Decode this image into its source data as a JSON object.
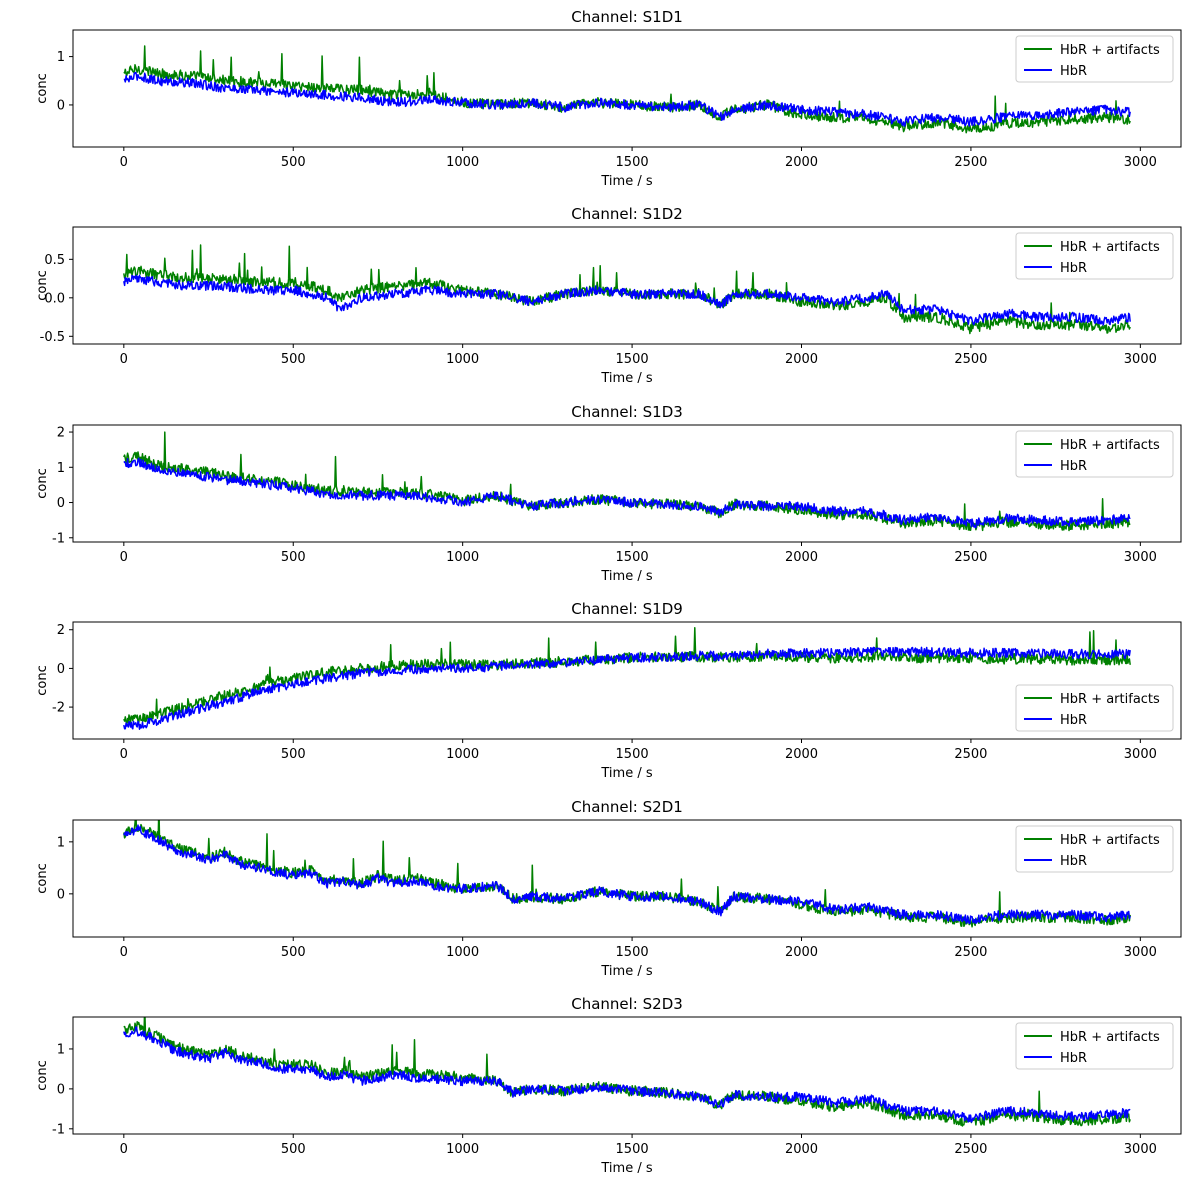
{
  "chart_data": [
    {
      "type": "line",
      "title": "Channel: S1D1",
      "xlabel": "Time / s",
      "ylabel": "conc",
      "xlim": [
        -150,
        3120
      ],
      "ylim": [
        -0.87,
        1.55
      ],
      "xticks": [
        0,
        500,
        1000,
        1500,
        2000,
        2500,
        3000
      ],
      "yticks": [
        0,
        1
      ],
      "legend_loc": "upper right",
      "series": [
        {
          "name": "HbR + artifacts",
          "color": "#008000",
          "x": [
            0,
            40,
            100,
            200,
            300,
            400,
            500,
            600,
            700,
            800,
            900,
            1000,
            1100,
            1200,
            1300,
            1400,
            1500,
            1600,
            1700,
            1760,
            1800,
            1900,
            2000,
            2100,
            2200,
            2300,
            2400,
            2500,
            2600,
            2700,
            2800,
            2900,
            2970
          ],
          "y": [
            0.65,
            0.75,
            0.65,
            0.6,
            0.5,
            0.45,
            0.4,
            0.35,
            0.3,
            0.2,
            0.25,
            0.05,
            0,
            0.05,
            -0.05,
            0.05,
            0,
            -0.05,
            0,
            -0.25,
            -0.1,
            0,
            -0.2,
            -0.25,
            -0.3,
            -0.45,
            -0.35,
            -0.5,
            -0.4,
            -0.35,
            -0.3,
            -0.25,
            -0.3
          ]
        },
        {
          "name": "HbR",
          "color": "#0000ff",
          "x": [
            0,
            40,
            100,
            200,
            300,
            400,
            500,
            600,
            700,
            800,
            900,
            1000,
            1100,
            1200,
            1300,
            1400,
            1500,
            1600,
            1700,
            1760,
            1800,
            1900,
            2000,
            2100,
            2200,
            2300,
            2400,
            2500,
            2600,
            2700,
            2800,
            2900,
            2970
          ],
          "y": [
            0.5,
            0.6,
            0.5,
            0.45,
            0.35,
            0.3,
            0.25,
            0.2,
            0.15,
            0.05,
            0.1,
            0.05,
            0,
            0.05,
            -0.05,
            0.05,
            0,
            -0.05,
            0,
            -0.25,
            -0.1,
            0,
            -0.1,
            -0.15,
            -0.2,
            -0.35,
            -0.25,
            -0.35,
            -0.25,
            -0.2,
            -0.15,
            -0.1,
            -0.15
          ]
        }
      ]
    },
    {
      "type": "line",
      "title": "Channel: S1D2",
      "xlabel": "Time / s",
      "ylabel": "conc",
      "xlim": [
        -150,
        3120
      ],
      "ylim": [
        -0.6,
        0.92
      ],
      "xticks": [
        0,
        500,
        1000,
        1500,
        2000,
        2500,
        3000
      ],
      "yticks": [
        -0.5,
        0.0,
        0.5
      ],
      "legend_loc": "upper right",
      "series": [
        {
          "name": "HbR + artifacts",
          "color": "#008000",
          "x": [
            0,
            40,
            100,
            200,
            300,
            400,
            500,
            600,
            640,
            700,
            800,
            900,
            1000,
            1100,
            1200,
            1300,
            1400,
            1500,
            1600,
            1700,
            1760,
            1800,
            1900,
            2000,
            2100,
            2200,
            2250,
            2300,
            2400,
            2500,
            2600,
            2700,
            2800,
            2900,
            2970
          ],
          "y": [
            0.3,
            0.35,
            0.3,
            0.25,
            0.25,
            0.2,
            0.2,
            0.1,
            0.0,
            0.1,
            0.15,
            0.2,
            0.1,
            0.05,
            -0.05,
            0.05,
            0.1,
            0.05,
            0.05,
            0.05,
            -0.1,
            0.05,
            0.05,
            -0.05,
            -0.1,
            -0.05,
            0.0,
            -0.25,
            -0.25,
            -0.4,
            -0.3,
            -0.35,
            -0.35,
            -0.4,
            -0.35
          ]
        },
        {
          "name": "HbR",
          "color": "#0000ff",
          "x": [
            0,
            40,
            100,
            200,
            300,
            400,
            500,
            600,
            640,
            700,
            800,
            900,
            1000,
            1100,
            1200,
            1300,
            1400,
            1500,
            1600,
            1700,
            1760,
            1800,
            1900,
            2000,
            2100,
            2200,
            2250,
            2300,
            2400,
            2500,
            2600,
            2700,
            2800,
            2900,
            2970
          ],
          "y": [
            0.2,
            0.25,
            0.2,
            0.15,
            0.15,
            0.1,
            0.1,
            0.0,
            -0.15,
            0.0,
            0.05,
            0.1,
            0.05,
            0.05,
            -0.05,
            0.05,
            0.1,
            0.05,
            0.05,
            0.05,
            -0.1,
            0.05,
            0.05,
            0.0,
            -0.05,
            0.0,
            0.05,
            -0.15,
            -0.15,
            -0.3,
            -0.2,
            -0.25,
            -0.25,
            -0.3,
            -0.25
          ]
        }
      ]
    },
    {
      "type": "line",
      "title": "Channel: S1D3",
      "xlabel": "Time / s",
      "ylabel": "conc",
      "xlim": [
        -150,
        3120
      ],
      "ylim": [
        -1.12,
        2.2
      ],
      "xticks": [
        0,
        500,
        1000,
        1500,
        2000,
        2500,
        3000
      ],
      "yticks": [
        -1,
        0,
        1,
        2
      ],
      "legend_loc": "upper right",
      "series": [
        {
          "name": "HbR + artifacts",
          "color": "#008000",
          "x": [
            0,
            40,
            100,
            200,
            300,
            400,
            500,
            600,
            700,
            800,
            900,
            1000,
            1100,
            1200,
            1300,
            1400,
            1500,
            1600,
            1700,
            1760,
            1800,
            1900,
            2000,
            2100,
            2200,
            2300,
            2400,
            2500,
            2600,
            2700,
            2800,
            2900,
            2970
          ],
          "y": [
            1.25,
            1.3,
            1.05,
            0.95,
            0.75,
            0.65,
            0.5,
            0.35,
            0.3,
            0.3,
            0.25,
            0.05,
            0.2,
            -0.1,
            0.0,
            0.1,
            0.0,
            -0.05,
            -0.1,
            -0.3,
            -0.05,
            -0.1,
            -0.2,
            -0.35,
            -0.35,
            -0.6,
            -0.5,
            -0.7,
            -0.55,
            -0.6,
            -0.65,
            -0.6,
            -0.55
          ]
        },
        {
          "name": "HbR",
          "color": "#0000ff",
          "x": [
            0,
            40,
            100,
            200,
            300,
            400,
            500,
            600,
            700,
            800,
            900,
            1000,
            1100,
            1200,
            1300,
            1400,
            1500,
            1600,
            1700,
            1760,
            1800,
            1900,
            2000,
            2100,
            2200,
            2300,
            2400,
            2500,
            2600,
            2700,
            2800,
            2900,
            2970
          ],
          "y": [
            1.1,
            1.15,
            0.95,
            0.8,
            0.65,
            0.55,
            0.4,
            0.25,
            0.2,
            0.2,
            0.15,
            0.0,
            0.2,
            -0.1,
            0.0,
            0.1,
            0.0,
            -0.05,
            -0.1,
            -0.3,
            -0.05,
            -0.1,
            -0.1,
            -0.25,
            -0.25,
            -0.5,
            -0.4,
            -0.6,
            -0.45,
            -0.5,
            -0.55,
            -0.5,
            -0.45
          ]
        }
      ]
    },
    {
      "type": "line",
      "title": "Channel: S1D9",
      "xlabel": "Time / s",
      "ylabel": "conc",
      "xlim": [
        -150,
        3120
      ],
      "ylim": [
        -3.65,
        2.4
      ],
      "xticks": [
        0,
        500,
        1000,
        1500,
        2000,
        2500,
        3000
      ],
      "yticks": [
        -2,
        0,
        2
      ],
      "legend_loc": "lower right",
      "series": [
        {
          "name": "HbR + artifacts",
          "color": "#008000",
          "x": [
            0,
            50,
            100,
            200,
            300,
            400,
            500,
            600,
            700,
            800,
            900,
            1000,
            1100,
            1200,
            1300,
            1400,
            1500,
            1600,
            1700,
            1800,
            1900,
            2000,
            2100,
            2200,
            2300,
            2400,
            2500,
            2600,
            2700,
            2800,
            2900,
            2970
          ],
          "y": [
            -2.7,
            -2.6,
            -2.4,
            -1.9,
            -1.4,
            -0.9,
            -0.5,
            -0.2,
            0.0,
            0.15,
            0.2,
            0.2,
            0.2,
            0.25,
            0.35,
            0.45,
            0.55,
            0.6,
            0.6,
            0.6,
            0.65,
            0.6,
            0.55,
            0.6,
            0.55,
            0.55,
            0.55,
            0.5,
            0.5,
            0.45,
            0.45,
            0.45
          ]
        },
        {
          "name": "HbR",
          "color": "#0000ff",
          "x": [
            0,
            50,
            100,
            200,
            300,
            400,
            500,
            600,
            700,
            800,
            900,
            1000,
            1100,
            1200,
            1300,
            1400,
            1500,
            1600,
            1700,
            1800,
            1900,
            2000,
            2100,
            2200,
            2300,
            2400,
            2500,
            2600,
            2700,
            2800,
            2900,
            2970
          ],
          "y": [
            -3.0,
            -2.9,
            -2.7,
            -2.2,
            -1.7,
            -1.2,
            -0.8,
            -0.5,
            -0.25,
            -0.1,
            0.0,
            0.0,
            0.1,
            0.2,
            0.3,
            0.45,
            0.55,
            0.6,
            0.65,
            0.65,
            0.75,
            0.8,
            0.8,
            0.85,
            0.85,
            0.85,
            0.8,
            0.8,
            0.8,
            0.75,
            0.75,
            0.75
          ]
        }
      ]
    },
    {
      "type": "line",
      "title": "Channel: S2D1",
      "xlabel": "Time / s",
      "ylabel": "conc",
      "xlim": [
        -150,
        3120
      ],
      "ylim": [
        -0.83,
        1.42
      ],
      "xticks": [
        0,
        500,
        1000,
        1500,
        2000,
        2500,
        3000
      ],
      "yticks": [
        0,
        1
      ],
      "legend_loc": "upper right",
      "series": [
        {
          "name": "HbR + artifacts",
          "color": "#008000",
          "x": [
            0,
            40,
            100,
            150,
            200,
            250,
            300,
            350,
            400,
            450,
            500,
            550,
            600,
            650,
            700,
            750,
            800,
            850,
            900,
            950,
            1000,
            1100,
            1150,
            1200,
            1300,
            1400,
            1500,
            1600,
            1700,
            1760,
            1800,
            1900,
            2000,
            2100,
            2200,
            2300,
            2400,
            2500,
            2600,
            2700,
            2800,
            2900,
            2970
          ],
          "y": [
            1.15,
            1.3,
            1.1,
            0.9,
            0.8,
            0.7,
            0.8,
            0.6,
            0.55,
            0.45,
            0.4,
            0.45,
            0.25,
            0.3,
            0.2,
            0.35,
            0.25,
            0.3,
            0.25,
            0.15,
            0.1,
            0.15,
            -0.1,
            -0.05,
            -0.1,
            0.05,
            -0.05,
            -0.05,
            -0.15,
            -0.35,
            -0.05,
            -0.1,
            -0.2,
            -0.35,
            -0.3,
            -0.45,
            -0.45,
            -0.55,
            -0.45,
            -0.45,
            -0.45,
            -0.5,
            -0.45
          ]
        },
        {
          "name": "HbR",
          "color": "#0000ff",
          "x": [
            0,
            40,
            100,
            150,
            200,
            250,
            300,
            350,
            400,
            450,
            500,
            550,
            600,
            650,
            700,
            750,
            800,
            850,
            900,
            950,
            1000,
            1100,
            1150,
            1200,
            1300,
            1400,
            1500,
            1600,
            1700,
            1760,
            1800,
            1900,
            2000,
            2100,
            2200,
            2300,
            2400,
            2500,
            2600,
            2700,
            2800,
            2900,
            2970
          ],
          "y": [
            1.1,
            1.25,
            1.05,
            0.85,
            0.75,
            0.65,
            0.75,
            0.55,
            0.5,
            0.4,
            0.35,
            0.4,
            0.2,
            0.25,
            0.15,
            0.3,
            0.2,
            0.25,
            0.2,
            0.1,
            0.1,
            0.15,
            -0.1,
            -0.05,
            -0.1,
            0.05,
            -0.05,
            -0.05,
            -0.15,
            -0.35,
            -0.05,
            -0.1,
            -0.15,
            -0.3,
            -0.25,
            -0.4,
            -0.4,
            -0.5,
            -0.4,
            -0.4,
            -0.4,
            -0.45,
            -0.4
          ]
        }
      ]
    },
    {
      "type": "line",
      "title": "Channel: S2D3",
      "xlabel": "Time / s",
      "ylabel": "conc",
      "xlim": [
        -150,
        3120
      ],
      "ylim": [
        -1.13,
        1.8
      ],
      "xticks": [
        0,
        500,
        1000,
        1500,
        2000,
        2500,
        3000
      ],
      "yticks": [
        -1,
        0,
        1
      ],
      "legend_loc": "upper right",
      "series": [
        {
          "name": "HbR + artifacts",
          "color": "#008000",
          "x": [
            0,
            40,
            100,
            150,
            200,
            250,
            300,
            350,
            400,
            450,
            500,
            550,
            600,
            650,
            700,
            800,
            900,
            1000,
            1100,
            1150,
            1200,
            1300,
            1400,
            1500,
            1600,
            1700,
            1760,
            1800,
            1900,
            2000,
            2100,
            2200,
            2300,
            2400,
            2500,
            2600,
            2700,
            2800,
            2900,
            2970
          ],
          "y": [
            1.5,
            1.55,
            1.3,
            1.05,
            0.95,
            0.85,
            1.0,
            0.8,
            0.75,
            0.6,
            0.6,
            0.6,
            0.4,
            0.45,
            0.3,
            0.45,
            0.35,
            0.3,
            0.2,
            -0.1,
            0.0,
            -0.05,
            0.05,
            -0.05,
            -0.1,
            -0.2,
            -0.4,
            -0.15,
            -0.2,
            -0.3,
            -0.45,
            -0.35,
            -0.65,
            -0.65,
            -0.85,
            -0.65,
            -0.7,
            -0.8,
            -0.75,
            -0.7
          ]
        },
        {
          "name": "HbR",
          "color": "#0000ff",
          "x": [
            0,
            40,
            100,
            150,
            200,
            250,
            300,
            350,
            400,
            450,
            500,
            550,
            600,
            650,
            700,
            800,
            900,
            1000,
            1100,
            1150,
            1200,
            1300,
            1400,
            1500,
            1600,
            1700,
            1760,
            1800,
            1900,
            2000,
            2100,
            2200,
            2300,
            2400,
            2500,
            2600,
            2700,
            2800,
            2900,
            2970
          ],
          "y": [
            1.4,
            1.45,
            1.2,
            0.95,
            0.85,
            0.75,
            0.9,
            0.7,
            0.65,
            0.5,
            0.5,
            0.5,
            0.3,
            0.35,
            0.2,
            0.35,
            0.25,
            0.2,
            0.2,
            -0.1,
            0.0,
            -0.05,
            0.05,
            -0.05,
            -0.1,
            -0.2,
            -0.4,
            -0.15,
            -0.2,
            -0.2,
            -0.35,
            -0.25,
            -0.55,
            -0.55,
            -0.75,
            -0.55,
            -0.6,
            -0.7,
            -0.65,
            -0.6
          ]
        }
      ]
    }
  ]
}
